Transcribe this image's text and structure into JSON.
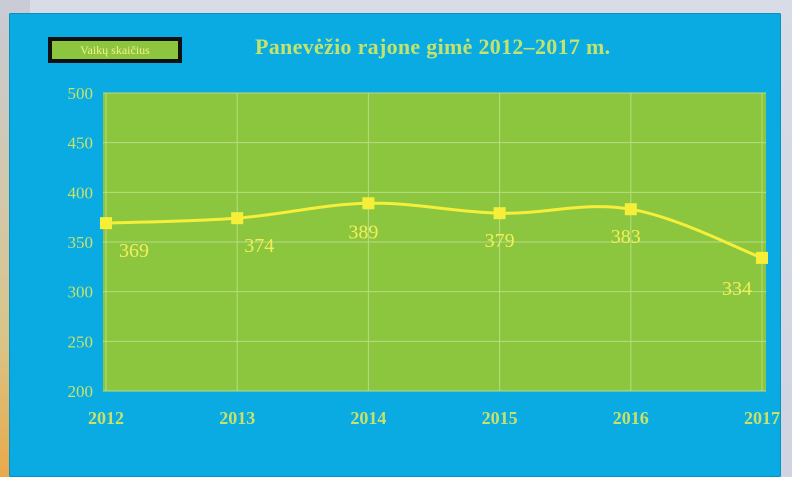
{
  "chart_data": {
    "type": "line",
    "title": "Panevėžio rajone gimė 2012–2017 m.",
    "x": [
      "2012",
      "2013",
      "2014",
      "2015",
      "2016",
      "2017"
    ],
    "series": [
      {
        "name": "Vaikų skaičius",
        "values": [
          369,
          374,
          389,
          379,
          383,
          334
        ]
      }
    ],
    "ylim": [
      200,
      500
    ],
    "yticks": [
      "500",
      "450",
      "400",
      "350",
      "300",
      "250",
      "200"
    ],
    "grid": true,
    "legend_position": "top-left",
    "colors": {
      "panel": "#0aaae3",
      "plot_area": "#8cc63f",
      "line": "#f5ef3a",
      "labels": "#f2ee5a",
      "ticks": "#c7e26a"
    }
  }
}
